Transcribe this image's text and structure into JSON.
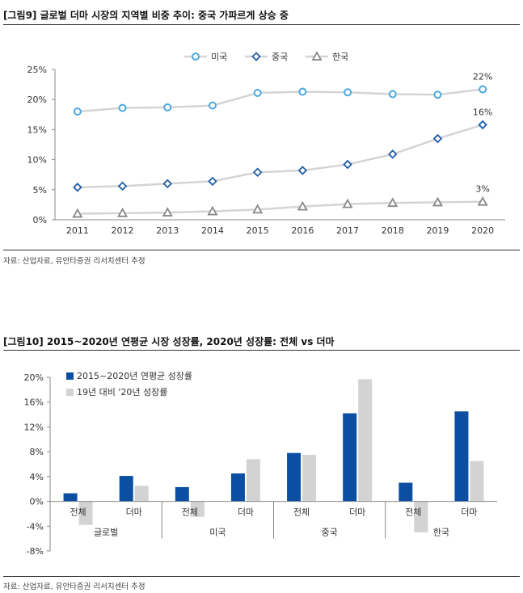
{
  "figure1": {
    "title": "[그림9] 글로벌 더마 시장의 지역별 비중 추이: 중국 가파르게 상승 중",
    "source": "자료: 산업자료, 유안타증권 리서치센터 추정"
  },
  "figure2": {
    "title": "[그림10] 2015~2020년 연평균 시장 성장률, 2020년 성장률: 전체 vs 더마",
    "source": "자료: 산업자료, 유안타증권 리서치센터 추정"
  },
  "chart_data": [
    {
      "type": "line",
      "x": [
        "2011",
        "2012",
        "2013",
        "2014",
        "2015",
        "2016",
        "2017",
        "2018",
        "2019",
        "2020"
      ],
      "ylim": [
        0,
        25
      ],
      "yticks": [
        "0%",
        "5%",
        "10%",
        "15%",
        "20%",
        "25%"
      ],
      "grid": false,
      "legend_position": "top-center",
      "series": [
        {
          "name": "미국",
          "marker": "circle",
          "color": "#4aa8e0",
          "values": [
            18.0,
            18.6,
            18.7,
            19.0,
            21.1,
            21.3,
            21.2,
            20.9,
            20.8,
            21.7
          ],
          "end_label": "22%"
        },
        {
          "name": "중국",
          "marker": "diamond",
          "color": "#1f5da8",
          "values": [
            5.4,
            5.6,
            6.0,
            6.4,
            7.9,
            8.2,
            9.2,
            10.9,
            13.5,
            15.8
          ],
          "end_label": "16%"
        },
        {
          "name": "한국",
          "marker": "triangle",
          "color": "#888888",
          "values": [
            1.0,
            1.1,
            1.2,
            1.4,
            1.7,
            2.2,
            2.6,
            2.8,
            2.9,
            3.0
          ],
          "end_label": "3%"
        }
      ],
      "line_color": "#d4d4d4"
    },
    {
      "type": "bar",
      "groups": [
        {
          "name": "글로벌",
          "categories": [
            "전체",
            "더마"
          ]
        },
        {
          "name": "미국",
          "categories": [
            "전체",
            "더마"
          ]
        },
        {
          "name": "중국",
          "categories": [
            "전체",
            "더마"
          ]
        },
        {
          "name": "한국",
          "categories": [
            "전체",
            "더마"
          ]
        }
      ],
      "ylim": [
        -8,
        20
      ],
      "yticks": [
        "-8%",
        "-4%",
        "0%",
        "4%",
        "8%",
        "12%",
        "16%",
        "20%"
      ],
      "legend_position": "top-left",
      "series": [
        {
          "name": "2015~2020년 연평균 성장률",
          "color": "#0b4ea2",
          "values": [
            1.3,
            4.1,
            2.3,
            4.5,
            7.8,
            14.2,
            3.0,
            14.5
          ]
        },
        {
          "name": "19년 대비 '20년 성장률",
          "color": "#d3d3d3",
          "values": [
            -3.8,
            2.5,
            -2.5,
            6.8,
            7.5,
            19.7,
            -5.0,
            6.5
          ]
        }
      ]
    }
  ]
}
